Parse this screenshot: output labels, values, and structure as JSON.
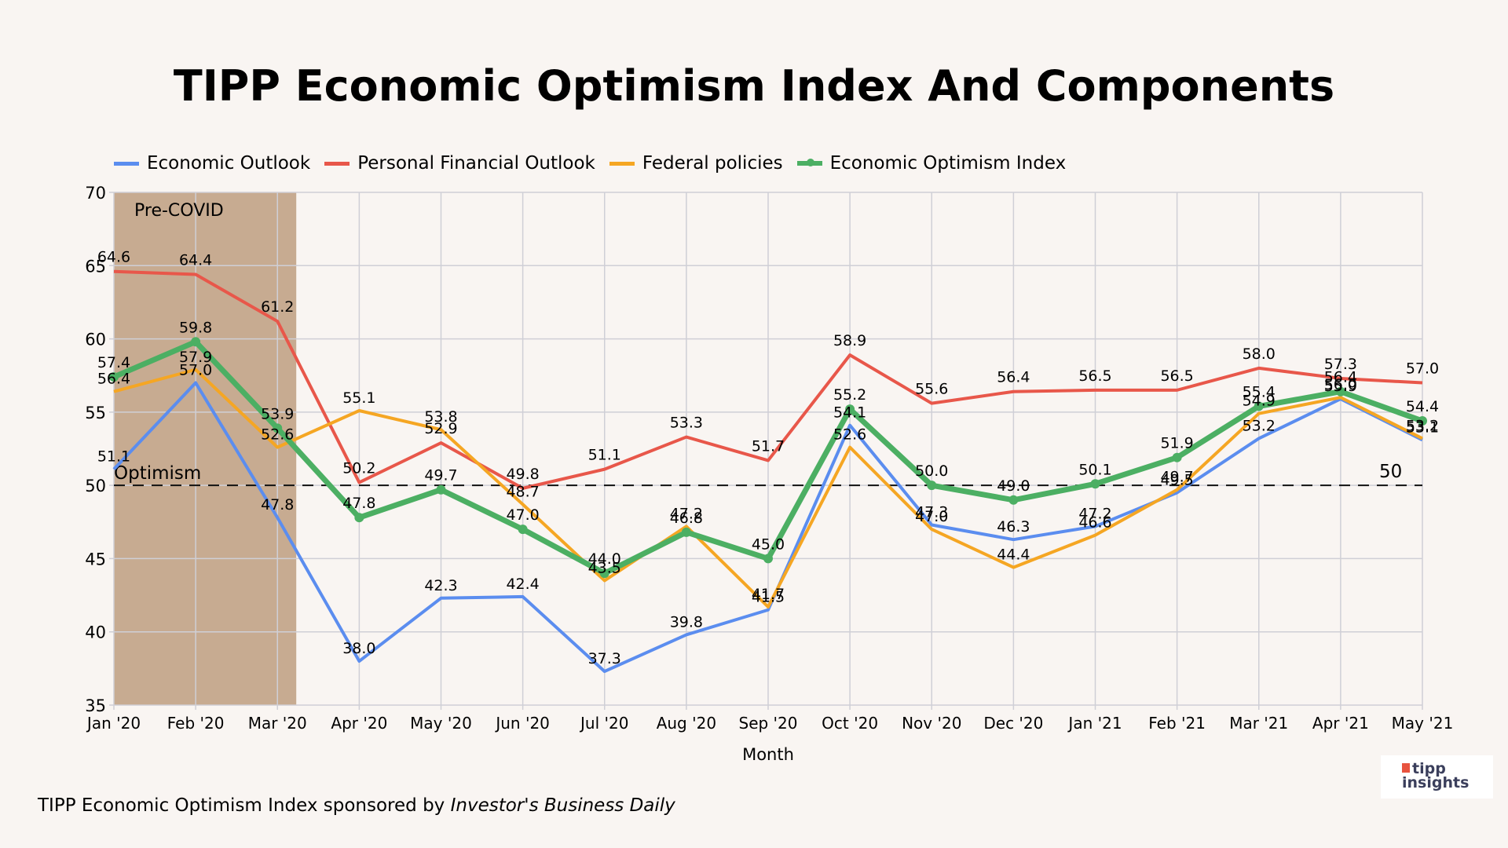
{
  "chart_data": {
    "type": "line",
    "title": "TIPP Economic Optimism Index And Components",
    "xlabel": "Month",
    "ylabel": "",
    "ylim": [
      35,
      70
    ],
    "yticks": [
      35,
      40,
      45,
      50,
      55,
      60,
      65,
      70
    ],
    "grid": true,
    "legend_position": "top-left",
    "categories": [
      "Jan '20",
      "Feb '20",
      "Mar '20",
      "Apr '20",
      "May '20",
      "Jun '20",
      "Jul '20",
      "Aug '20",
      "Sep '20",
      "Oct '20",
      "Nov '20",
      "Dec '20",
      "Jan '21",
      "Feb '21",
      "Mar '21",
      "Apr '21",
      "May '21"
    ],
    "series": [
      {
        "name": "Economic Outlook",
        "color": "#5b8def",
        "values": [
          51.1,
          57.0,
          47.8,
          38.0,
          42.3,
          42.4,
          37.3,
          39.8,
          41.5,
          54.1,
          47.3,
          46.3,
          47.2,
          49.5,
          53.2,
          55.9,
          53.1
        ]
      },
      {
        "name": "Personal Financial Outlook",
        "color": "#e8574a",
        "values": [
          64.6,
          64.4,
          61.2,
          50.2,
          52.9,
          49.8,
          51.1,
          53.3,
          51.7,
          58.9,
          55.6,
          56.4,
          56.5,
          56.5,
          58.0,
          57.3,
          57.0
        ]
      },
      {
        "name": "Federal policies",
        "color": "#f5a623",
        "values": [
          56.4,
          57.9,
          52.6,
          55.1,
          53.8,
          48.7,
          43.5,
          47.2,
          41.7,
          52.6,
          47.0,
          44.4,
          46.6,
          49.7,
          54.9,
          56.0,
          53.2
        ]
      },
      {
        "name": "Economic Optimism Index",
        "color": "#4caf63",
        "values": [
          57.4,
          59.8,
          53.9,
          47.8,
          49.7,
          47.0,
          44.0,
          46.8,
          45.0,
          55.2,
          50.0,
          49.0,
          50.1,
          51.9,
          55.4,
          56.4,
          54.4
        ]
      }
    ],
    "annotations": {
      "shaded_region": {
        "label": "Pre-COVID",
        "from": "Jan '20",
        "to": "Mar '20",
        "color": "#c7ab91"
      },
      "reference_line": {
        "value": 50,
        "label_left": "Optimism",
        "label_right": "50",
        "style": "dashed"
      }
    }
  },
  "footer": {
    "text": "TIPP Economic Optimism Index sponsored by ",
    "italic": "Investor's Business Daily"
  },
  "logo": {
    "line1": "tipp",
    "line2": "insights"
  }
}
